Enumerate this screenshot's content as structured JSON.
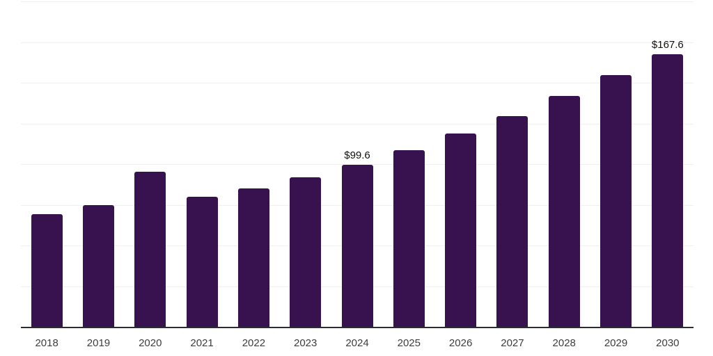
{
  "chart_data": {
    "type": "bar",
    "title": "",
    "xlabel": "",
    "ylabel": "",
    "categories": [
      "2018",
      "2019",
      "2020",
      "2021",
      "2022",
      "2023",
      "2024",
      "2025",
      "2026",
      "2027",
      "2028",
      "2029",
      "2030"
    ],
    "values": [
      69.4,
      75.0,
      95.5,
      80.1,
      84.9,
      92.1,
      99.6,
      108.7,
      119.0,
      129.6,
      142.1,
      154.8,
      167.6
    ],
    "value_labels": [
      {
        "category": "2024",
        "text": "$99.6"
      },
      {
        "category": "2030",
        "text": "$167.6"
      }
    ],
    "ylim": [
      0,
      200
    ],
    "grid": true,
    "grid_step": 25,
    "legend": false,
    "colors": {
      "bar": "#37124f",
      "grid": "#f0f0f0",
      "axis": "#2b2b33",
      "tick_label": "#3d3d3d",
      "value_label": "#111111"
    }
  }
}
